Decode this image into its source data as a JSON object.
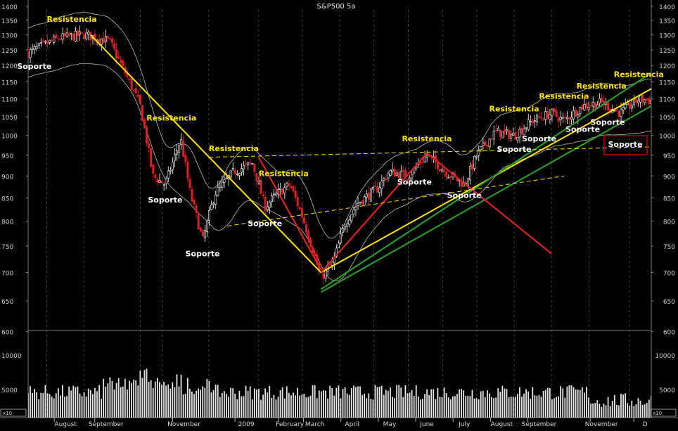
{
  "chart_data": {
    "type": "candlestick",
    "title": "S&P500 5a",
    "colors": {
      "background": "#000000",
      "up": "#ffffff",
      "down": "#e02020",
      "resistance": "#ffe600",
      "support_trend": "#2a9a2a",
      "falling_trend": "#e02020",
      "label_resistance": "#ffe600",
      "label_support": "#ffffff",
      "frame": "#c00000"
    },
    "price_axis": {
      "ticks": [
        650,
        700,
        750,
        800,
        850,
        900,
        950,
        1000,
        1050,
        1100,
        1150,
        1200,
        1250,
        1300,
        1350,
        1400
      ],
      "extra_ticks": [
        600
      ],
      "scale": "log"
    },
    "volume_axis": {
      "ticks": [
        5000,
        10000
      ],
      "corner_label": "x10"
    },
    "x_labels": [
      "August",
      "September",
      "November",
      "2009",
      "February",
      "March",
      "April",
      "May",
      "June",
      "July",
      "August",
      "September",
      "November",
      "D"
    ],
    "price_path_anchors": [
      {
        "t": 0.0,
        "price": 1240
      },
      {
        "t": 0.05,
        "price": 1290
      },
      {
        "t": 0.09,
        "price": 1300
      },
      {
        "t": 0.13,
        "price": 1280
      },
      {
        "t": 0.15,
        "price": 1200
      },
      {
        "t": 0.18,
        "price": 1080
      },
      {
        "t": 0.2,
        "price": 900
      },
      {
        "t": 0.22,
        "price": 880
      },
      {
        "t": 0.245,
        "price": 990
      },
      {
        "t": 0.26,
        "price": 860
      },
      {
        "t": 0.28,
        "price": 760
      },
      {
        "t": 0.3,
        "price": 860
      },
      {
        "t": 0.33,
        "price": 910
      },
      {
        "t": 0.36,
        "price": 930
      },
      {
        "t": 0.38,
        "price": 830
      },
      {
        "t": 0.4,
        "price": 860
      },
      {
        "t": 0.42,
        "price": 880
      },
      {
        "t": 0.44,
        "price": 810
      },
      {
        "t": 0.47,
        "price": 690
      },
      {
        "t": 0.49,
        "price": 720
      },
      {
        "t": 0.51,
        "price": 800
      },
      {
        "t": 0.53,
        "price": 840
      },
      {
        "t": 0.56,
        "price": 870
      },
      {
        "t": 0.58,
        "price": 910
      },
      {
        "t": 0.61,
        "price": 900
      },
      {
        "t": 0.64,
        "price": 950
      },
      {
        "t": 0.67,
        "price": 910
      },
      {
        "t": 0.7,
        "price": 880
      },
      {
        "t": 0.72,
        "price": 950
      },
      {
        "t": 0.75,
        "price": 1010
      },
      {
        "t": 0.78,
        "price": 1000
      },
      {
        "t": 0.81,
        "price": 1040
      },
      {
        "t": 0.84,
        "price": 1060
      },
      {
        "t": 0.86,
        "price": 1040
      },
      {
        "t": 0.89,
        "price": 1080
      },
      {
        "t": 0.92,
        "price": 1090
      },
      {
        "t": 0.95,
        "price": 1060
      },
      {
        "t": 0.98,
        "price": 1100
      },
      {
        "t": 1.0,
        "price": 1095
      }
    ],
    "annotations": {
      "resistance_labels": [
        {
          "text": "Resistencia",
          "t": 0.07,
          "price": 1345
        },
        {
          "text": "Resistencia",
          "t": 0.23,
          "price": 1040
        },
        {
          "text": "Resistencia",
          "t": 0.33,
          "price": 960
        },
        {
          "text": "Resistencia",
          "t": 0.41,
          "price": 900
        },
        {
          "text": "Resistencia",
          "t": 0.64,
          "price": 985
        },
        {
          "text": "Resistencia",
          "t": 0.78,
          "price": 1065
        },
        {
          "text": "Resistencia",
          "t": 0.86,
          "price": 1100
        },
        {
          "text": "Resistencia",
          "t": 0.92,
          "price": 1130
        },
        {
          "text": "Resistencia",
          "t": 0.98,
          "price": 1165
        }
      ],
      "support_labels": [
        {
          "text": "Soporte",
          "t": 0.01,
          "price": 1190
        },
        {
          "text": "Soporte",
          "t": 0.22,
          "price": 840
        },
        {
          "text": "Soporte",
          "t": 0.28,
          "price": 730
        },
        {
          "text": "Soporte",
          "t": 0.38,
          "price": 790
        },
        {
          "text": "Soporte",
          "t": 0.62,
          "price": 880
        },
        {
          "text": "Soporte",
          "t": 0.7,
          "price": 850
        },
        {
          "text": "Soporte",
          "t": 0.78,
          "price": 958
        },
        {
          "text": "Soporte",
          "t": 0.82,
          "price": 985
        },
        {
          "text": "Soporte",
          "t": 0.89,
          "price": 1010
        },
        {
          "text": "Soporte",
          "t": 0.93,
          "price": 1028
        },
        {
          "text": "Soporte",
          "t": 1.0,
          "price": 970
        }
      ]
    },
    "trendlines": [
      {
        "style": "resistance",
        "from": {
          "t": 0.1,
          "price": 1300
        },
        "to": {
          "t": 0.47,
          "price": 700
        }
      },
      {
        "style": "resistance",
        "from": {
          "t": 0.47,
          "price": 700
        },
        "to": {
          "t": 1.02,
          "price": 1150
        }
      },
      {
        "style": "support_trend",
        "from": {
          "t": 0.47,
          "price": 670
        },
        "to": {
          "t": 1.03,
          "price": 1215
        }
      },
      {
        "style": "support_trend",
        "from": {
          "t": 0.47,
          "price": 665
        },
        "to": {
          "t": 1.03,
          "price": 1110
        }
      },
      {
        "style": "falling_trend",
        "from": {
          "t": 0.37,
          "price": 945
        },
        "to": {
          "t": 0.47,
          "price": 705
        }
      },
      {
        "style": "falling_trend",
        "from": {
          "t": 0.47,
          "price": 700
        },
        "to": {
          "t": 0.64,
          "price": 955
        }
      },
      {
        "style": "falling_trend",
        "from": {
          "t": 0.64,
          "price": 955
        },
        "to": {
          "t": 0.84,
          "price": 735
        }
      },
      {
        "style": "dashed_resistance",
        "from": {
          "t": 0.29,
          "price": 945
        },
        "to": {
          "t": 1.03,
          "price": 972
        }
      },
      {
        "style": "dashed_resistance",
        "from": {
          "t": 0.32,
          "price": 790
        },
        "to": {
          "t": 0.86,
          "price": 900
        }
      }
    ]
  }
}
